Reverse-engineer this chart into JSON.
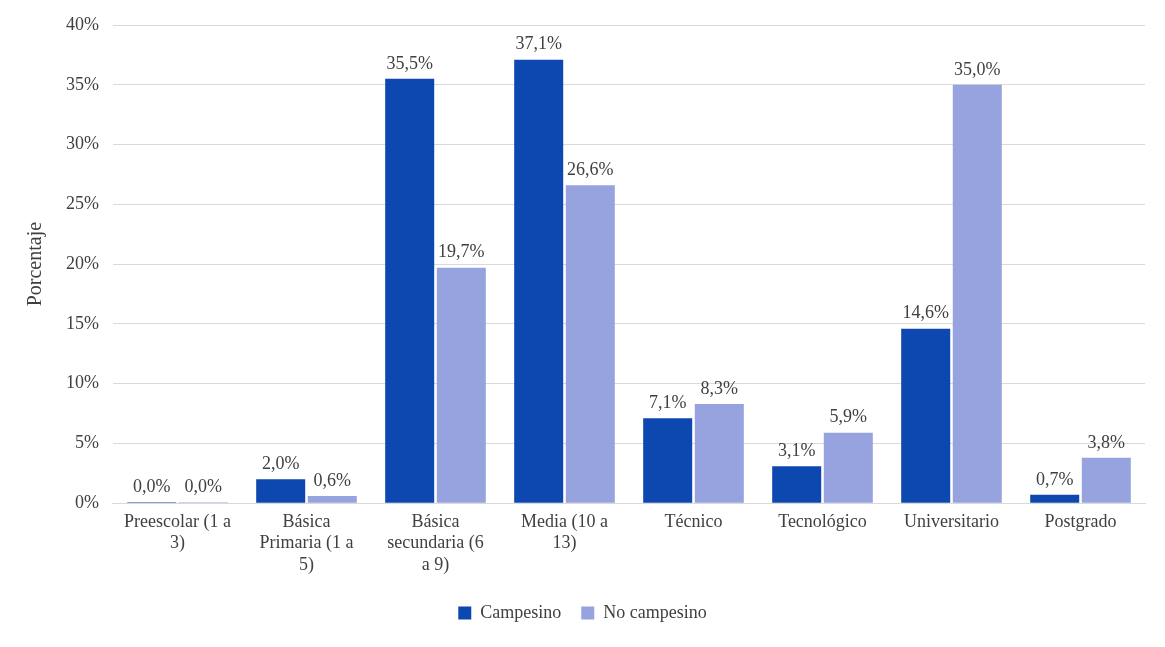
{
  "chart_data": {
    "type": "bar",
    "ylabel": "Porcentaje",
    "categories": [
      "Preescolar (1 a 3)",
      "Básica Primaria (1 a 5)",
      "Básica secundaria (6 a 9)",
      "Media (10 a 13)",
      "Técnico",
      "Tecnológico",
      "Universitario",
      "Postgrado"
    ],
    "series": [
      {
        "name": "Campesino",
        "color": "#0d47b0",
        "values": [
          0,
          2.0,
          35.5,
          37.1,
          7.1,
          3.1,
          14.6,
          0.7
        ],
        "value_labels": [
          "0,0%",
          "2,0%",
          "35,5%",
          "37,1%",
          "7,1%",
          "3,1%",
          "14,6%",
          "0,7%"
        ]
      },
      {
        "name": "No campesino",
        "color": "#97a3df",
        "values": [
          0,
          0.6,
          19.7,
          26.6,
          8.3,
          5.9,
          35.0,
          3.8
        ],
        "value_labels": [
          "0,0%",
          "0,6%",
          "19,7%",
          "26,6%",
          "8,3%",
          "5,9%",
          "35,0%",
          "3,8%"
        ]
      }
    ],
    "ylim": [
      0,
      40
    ],
    "yticks": [
      {
        "value": 0,
        "label": "0%"
      },
      {
        "value": 5,
        "label": "5%"
      },
      {
        "value": 10,
        "label": "10%"
      },
      {
        "value": 15,
        "label": "15%"
      },
      {
        "value": 20,
        "label": "20%"
      },
      {
        "value": 25,
        "label": "25%"
      },
      {
        "value": 30,
        "label": "30%"
      },
      {
        "value": 35,
        "label": "35%"
      },
      {
        "value": 40,
        "label": "40%"
      }
    ],
    "grid": "y",
    "legend": "bottom"
  }
}
